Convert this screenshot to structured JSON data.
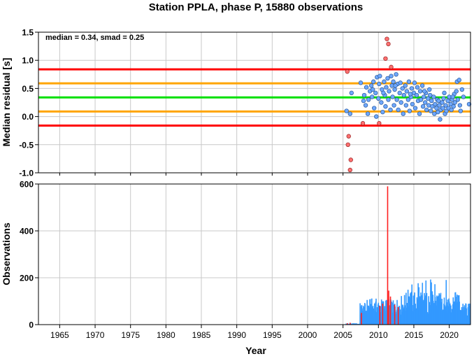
{
  "colors": {
    "red": "#ff0000",
    "orange": "#ffa500",
    "green": "#00e000",
    "point_blue": "#6fa8ff",
    "point_red": "#ff7070",
    "bar_blue": "#3399ff",
    "bar_red": "#ff2020",
    "grid": "#c8c8c8"
  },
  "chart_data": [
    {
      "type": "scatter",
      "title": "Station PPLA, phase P, 15880 observations",
      "annotation": "median = 0.34, smad = 0.25",
      "xlabel": "",
      "ylabel": "Median residual [s]",
      "xlim": [
        1962,
        2023
      ],
      "ylim": [
        -1.0,
        1.5
      ],
      "yticks": [
        "1.5",
        "1.0",
        "0.5",
        "0.0",
        "-0.5",
        "-1.0"
      ],
      "ytick_values": [
        1.5,
        1.0,
        0.5,
        0.0,
        -0.5,
        -1.0
      ],
      "grid": true,
      "reference_lines": [
        {
          "y": 0.84,
          "color": "red"
        },
        {
          "y": 0.59,
          "color": "orange"
        },
        {
          "y": 0.34,
          "color": "green"
        },
        {
          "y": 0.09,
          "color": "orange"
        },
        {
          "y": -0.16,
          "color": "red"
        }
      ],
      "outliers": [
        [
          2005.6,
          0.8
        ],
        [
          2005.8,
          -0.35
        ],
        [
          2005.7,
          -0.5
        ],
        [
          2006.1,
          -0.77
        ],
        [
          2006.0,
          -0.95
        ],
        [
          2007.8,
          -0.12
        ],
        [
          2010.1,
          -0.12
        ],
        [
          2011.0,
          1.03
        ],
        [
          2011.2,
          1.38
        ],
        [
          2011.4,
          1.29
        ],
        [
          2011.8,
          0.88
        ]
      ],
      "points": [
        [
          2005.5,
          0.1
        ],
        [
          2006.2,
          0.42
        ],
        [
          2006.0,
          0.05
        ],
        [
          2007.5,
          0.6
        ],
        [
          2007.9,
          0.28
        ],
        [
          2008.0,
          0.38
        ],
        [
          2008.2,
          0.2
        ],
        [
          2008.3,
          0.52
        ],
        [
          2008.5,
          0.05
        ],
        [
          2008.6,
          0.3
        ],
        [
          2008.8,
          0.45
        ],
        [
          2009.0,
          0.55
        ],
        [
          2009.1,
          0.35
        ],
        [
          2009.3,
          0.62
        ],
        [
          2009.4,
          0.15
        ],
        [
          2009.6,
          0.42
        ],
        [
          2009.7,
          0.0
        ],
        [
          2009.8,
          0.7
        ],
        [
          2010.0,
          0.32
        ],
        [
          2010.1,
          0.58
        ],
        [
          2010.2,
          0.72
        ],
        [
          2010.4,
          0.25
        ],
        [
          2010.5,
          0.48
        ],
        [
          2010.6,
          0.08
        ],
        [
          2010.8,
          0.62
        ],
        [
          2010.9,
          0.38
        ],
        [
          2011.0,
          0.18
        ],
        [
          2011.1,
          0.52
        ],
        [
          2011.3,
          0.68
        ],
        [
          2011.4,
          0.3
        ],
        [
          2011.5,
          0.45
        ],
        [
          2011.7,
          0.12
        ],
        [
          2011.8,
          0.72
        ],
        [
          2011.9,
          0.55
        ],
        [
          2012.0,
          0.35
        ],
        [
          2012.1,
          0.62
        ],
        [
          2012.2,
          0.2
        ],
        [
          2012.3,
          0.48
        ],
        [
          2012.5,
          0.75
        ],
        [
          2012.6,
          0.3
        ],
        [
          2012.7,
          0.58
        ],
        [
          2012.8,
          0.12
        ],
        [
          2013.0,
          0.42
        ],
        [
          2013.1,
          0.6
        ],
        [
          2013.2,
          0.25
        ],
        [
          2013.4,
          0.5
        ],
        [
          2013.5,
          0.05
        ],
        [
          2013.6,
          0.38
        ],
        [
          2013.8,
          0.55
        ],
        [
          2013.9,
          0.2
        ],
        [
          2014.0,
          0.45
        ],
        [
          2014.2,
          0.3
        ],
        [
          2014.3,
          0.62
        ],
        [
          2014.4,
          0.1
        ],
        [
          2014.6,
          0.35
        ],
        [
          2014.7,
          0.5
        ],
        [
          2014.8,
          0.22
        ],
        [
          2015.0,
          0.42
        ],
        [
          2015.1,
          0.6
        ],
        [
          2015.2,
          0.15
        ],
        [
          2015.4,
          0.38
        ],
        [
          2015.5,
          0.52
        ],
        [
          2015.6,
          0.28
        ],
        [
          2015.8,
          0.05
        ],
        [
          2015.9,
          0.45
        ],
        [
          2016.0,
          0.3
        ],
        [
          2016.2,
          0.55
        ],
        [
          2016.3,
          0.18
        ],
        [
          2016.4,
          0.35
        ],
        [
          2016.6,
          0.25
        ],
        [
          2016.7,
          0.42
        ],
        [
          2016.8,
          0.12
        ],
        [
          2017.0,
          0.32
        ],
        [
          2017.1,
          0.2
        ],
        [
          2017.2,
          0.48
        ],
        [
          2017.4,
          0.1
        ],
        [
          2017.5,
          0.28
        ],
        [
          2017.6,
          0.18
        ],
        [
          2017.8,
          0.35
        ],
        [
          2017.9,
          0.05
        ],
        [
          2018.0,
          0.22
        ],
        [
          2018.2,
          0.15
        ],
        [
          2018.3,
          0.3
        ],
        [
          2018.4,
          0.08
        ],
        [
          2018.6,
          0.2
        ],
        [
          2018.7,
          -0.05
        ],
        [
          2018.8,
          0.12
        ],
        [
          2019.0,
          0.25
        ],
        [
          2019.1,
          0.15
        ],
        [
          2019.2,
          0.32
        ],
        [
          2019.4,
          0.05
        ],
        [
          2019.5,
          0.2
        ],
        [
          2019.6,
          0.1
        ],
        [
          2019.8,
          0.28
        ],
        [
          2019.9,
          0.15
        ],
        [
          2020.0,
          0.35
        ],
        [
          2020.2,
          0.22
        ],
        [
          2020.3,
          0.12
        ],
        [
          2020.4,
          0.3
        ],
        [
          2020.6,
          0.18
        ],
        [
          2020.7,
          0.4
        ],
        [
          2020.8,
          0.25
        ],
        [
          2021.0,
          0.45
        ],
        [
          2021.1,
          0.62
        ],
        [
          2021.2,
          0.3
        ],
        [
          2021.4,
          0.65
        ],
        [
          2021.5,
          0.2
        ],
        [
          2021.6,
          0.1
        ],
        [
          2021.8,
          0.48
        ],
        [
          2022.0,
          0.35
        ],
        [
          2022.8,
          0.22
        ],
        [
          2009.2,
          0.48
        ],
        [
          2010.7,
          0.42
        ],
        [
          2012.4,
          0.55
        ],
        [
          2014.5,
          0.4
        ],
        [
          2016.5,
          0.45
        ],
        [
          2018.5,
          0.28
        ],
        [
          2019.3,
          0.42
        ],
        [
          2020.5,
          0.35
        ],
        [
          2017.3,
          0.38
        ]
      ]
    },
    {
      "type": "bar",
      "xlabel": "Year",
      "ylabel": "Observations",
      "xlim": [
        1962,
        2023
      ],
      "ylim": [
        0,
        600
      ],
      "xticks": [
        "1965",
        "1970",
        "1975",
        "1980",
        "1985",
        "1990",
        "1995",
        "2000",
        "2005",
        "2010",
        "2015",
        "2020"
      ],
      "xtick_values": [
        1965,
        1970,
        1975,
        1980,
        1985,
        1990,
        1995,
        2000,
        2005,
        2010,
        2015,
        2020
      ],
      "yticks": [
        "600",
        "400",
        "200",
        "0"
      ],
      "ytick_values": [
        600,
        400,
        200,
        0
      ],
      "grid": true,
      "red_spikes": [
        [
          2005.6,
          6
        ],
        [
          2006.0,
          8
        ],
        [
          2007.6,
          50
        ],
        [
          2010.2,
          80
        ],
        [
          2010.6,
          90
        ],
        [
          2011.3,
          590
        ],
        [
          2011.45,
          145
        ],
        [
          2011.7,
          120
        ],
        [
          2012.3,
          85
        ],
        [
          2012.8,
          75
        ]
      ]
    }
  ]
}
